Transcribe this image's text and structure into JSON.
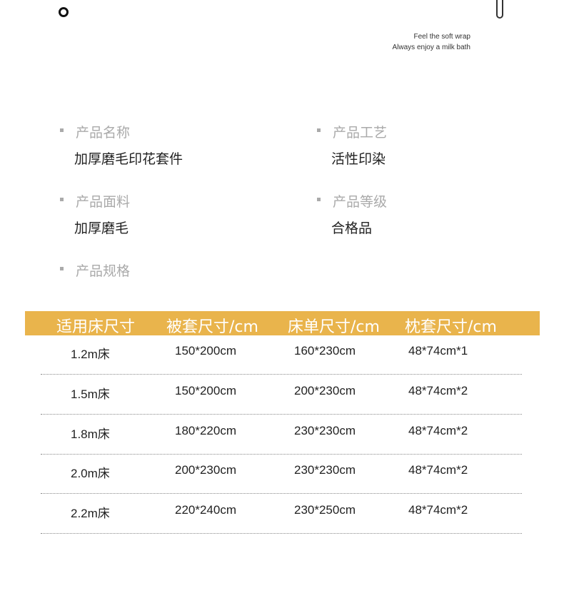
{
  "slogan": {
    "line1": "Feel the soft wrap",
    "line2": "Always enjoy a milk bath"
  },
  "specs": [
    {
      "label": "产品名称",
      "value": "加厚磨毛印花套件"
    },
    {
      "label": "产品工艺",
      "value": "活性印染"
    },
    {
      "label": "产品面料",
      "value": "加厚磨毛"
    },
    {
      "label": "产品等级",
      "value": "合格品"
    },
    {
      "label": "产品规格",
      "value": ""
    }
  ],
  "table": {
    "header_color": "#e9b44c",
    "headers": [
      "适用床尺寸",
      "被套尺寸/cm",
      "床单尺寸/cm",
      "枕套尺寸/cm"
    ],
    "rows": [
      [
        "1.2m床",
        "150*200cm",
        "160*230cm",
        "48*74cm*1"
      ],
      [
        "1.5m床",
        "150*200cm",
        "200*230cm",
        "48*74cm*2"
      ],
      [
        "1.8m床",
        "180*220cm",
        "230*230cm",
        "48*74cm*2"
      ],
      [
        "2.0m床",
        "200*230cm",
        "230*230cm",
        "48*74cm*2"
      ],
      [
        "2.2m床",
        "220*240cm",
        "230*250cm",
        "48*74cm*2"
      ]
    ]
  }
}
